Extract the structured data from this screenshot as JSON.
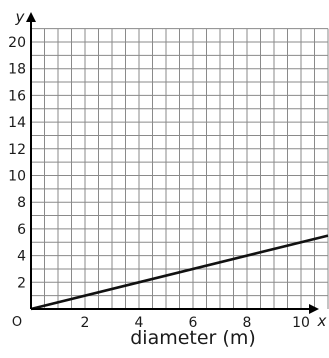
{
  "chart_data": {
    "type": "line",
    "xlabel": "diameter (m)",
    "x_axis_letter": "x",
    "y_axis_letter": "y",
    "origin_label": "O",
    "xlim": [
      0,
      11
    ],
    "ylim": [
      0,
      21
    ],
    "x_ticks": [
      2,
      4,
      6,
      8,
      10
    ],
    "y_ticks": [
      2,
      4,
      6,
      8,
      10,
      12,
      14,
      16,
      18,
      20
    ],
    "x_grid_step": 0.5,
    "y_grid_step": 1,
    "grid": true,
    "series": [
      {
        "x": [
          0,
          11
        ],
        "y": [
          0,
          5.5
        ],
        "color": "#111111"
      }
    ]
  }
}
